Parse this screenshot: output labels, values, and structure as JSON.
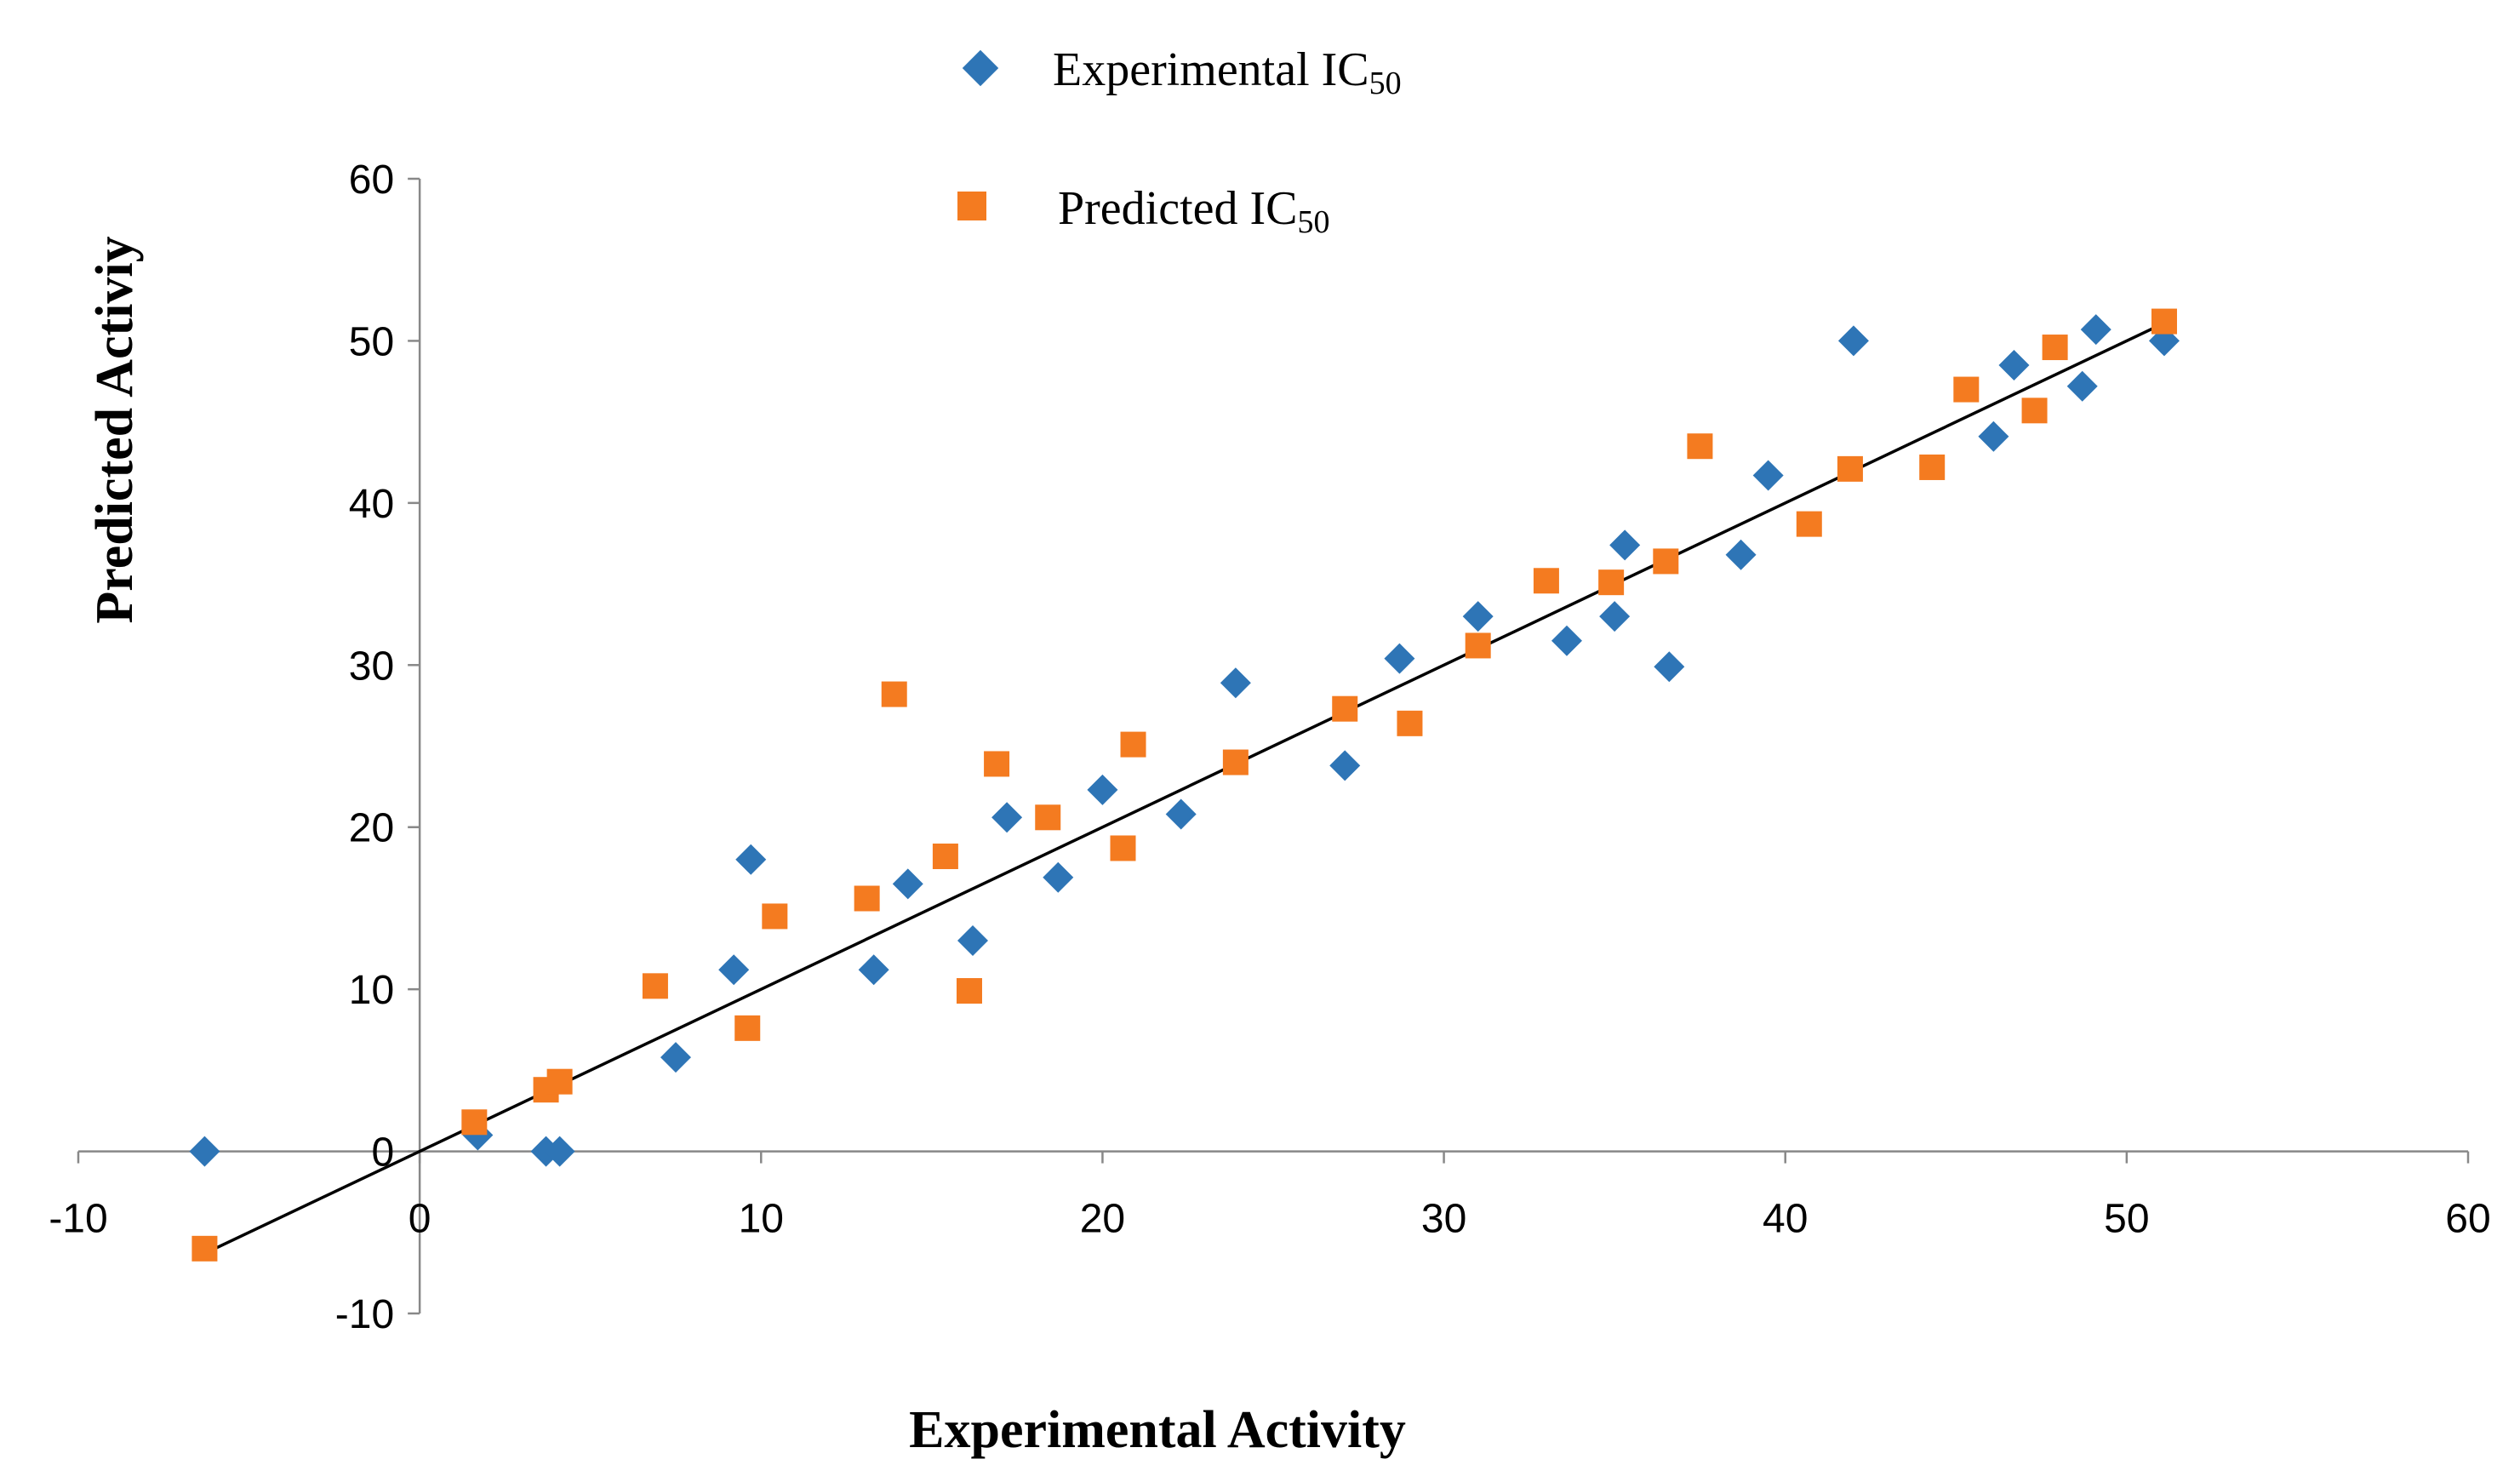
{
  "chart_data": {
    "type": "scatter",
    "title": "",
    "xlabel": "Experimental Activity",
    "ylabel": "Predicted Activiy",
    "xlim": [
      -10,
      60
    ],
    "ylim": [
      -10,
      60
    ],
    "x_ticks": [
      "-10",
      "0",
      "10",
      "20",
      "30",
      "40",
      "50",
      "60"
    ],
    "y_ticks": [
      "-10",
      "0",
      "10",
      "20",
      "30",
      "40",
      "50",
      "60"
    ],
    "x_tick_values": [
      -10,
      0,
      10,
      20,
      30,
      40,
      50,
      60
    ],
    "y_tick_values": [
      -10,
      0,
      10,
      20,
      30,
      40,
      50,
      60
    ],
    "grid": false,
    "legend_position": "top-center",
    "series": [
      {
        "name": "Experimental IC50",
        "label_main": "Experimental IC",
        "label_sub": "50",
        "marker": "diamond",
        "color": "#2E75B6",
        "points": [
          {
            "x": -6.3,
            "y": 0
          },
          {
            "x": 1.7,
            "y": 1.0
          },
          {
            "x": 3.7,
            "y": 0
          },
          {
            "x": 4.1,
            "y": 0
          },
          {
            "x": 7.5,
            "y": 5.8
          },
          {
            "x": 9.2,
            "y": 11.2
          },
          {
            "x": 9.7,
            "y": 18.0
          },
          {
            "x": 13.3,
            "y": 11.2
          },
          {
            "x": 14.3,
            "y": 16.5
          },
          {
            "x": 16.2,
            "y": 13.0
          },
          {
            "x": 17.2,
            "y": 20.6
          },
          {
            "x": 18.7,
            "y": 16.9
          },
          {
            "x": 20.0,
            "y": 22.3
          },
          {
            "x": 22.3,
            "y": 20.8
          },
          {
            "x": 23.9,
            "y": 28.9
          },
          {
            "x": 27.1,
            "y": 23.8
          },
          {
            "x": 28.7,
            "y": 30.4
          },
          {
            "x": 31.0,
            "y": 33.0
          },
          {
            "x": 33.6,
            "y": 31.5
          },
          {
            "x": 35.0,
            "y": 33.0
          },
          {
            "x": 35.3,
            "y": 37.4
          },
          {
            "x": 36.6,
            "y": 29.9
          },
          {
            "x": 38.7,
            "y": 36.8
          },
          {
            "x": 39.5,
            "y": 41.7
          },
          {
            "x": 42.0,
            "y": 50.0
          },
          {
            "x": 46.1,
            "y": 44.1
          },
          {
            "x": 46.7,
            "y": 48.5
          },
          {
            "x": 48.7,
            "y": 47.2
          },
          {
            "x": 49.1,
            "y": 50.7
          },
          {
            "x": 51.1,
            "y": 50.0
          }
        ]
      },
      {
        "name": "Predicted IC50",
        "label_main": "Predicted IC",
        "label_sub": "50",
        "marker": "square",
        "color": "#F47B20",
        "points": [
          {
            "x": -6.3,
            "y": -6.0
          },
          {
            "x": 1.6,
            "y": 1.8
          },
          {
            "x": 3.7,
            "y": 3.8
          },
          {
            "x": 4.1,
            "y": 4.3
          },
          {
            "x": 6.9,
            "y": 10.2
          },
          {
            "x": 9.6,
            "y": 7.6
          },
          {
            "x": 10.4,
            "y": 14.5
          },
          {
            "x": 13.1,
            "y": 15.6
          },
          {
            "x": 13.9,
            "y": 28.2
          },
          {
            "x": 15.4,
            "y": 18.2
          },
          {
            "x": 16.1,
            "y": 9.9
          },
          {
            "x": 16.9,
            "y": 23.9
          },
          {
            "x": 18.4,
            "y": 20.6
          },
          {
            "x": 20.6,
            "y": 18.7
          },
          {
            "x": 20.9,
            "y": 25.1
          },
          {
            "x": 23.9,
            "y": 24.0
          },
          {
            "x": 27.1,
            "y": 27.3
          },
          {
            "x": 29.0,
            "y": 26.4
          },
          {
            "x": 31.0,
            "y": 31.2
          },
          {
            "x": 33.0,
            "y": 35.2
          },
          {
            "x": 34.9,
            "y": 35.1
          },
          {
            "x": 36.5,
            "y": 36.4
          },
          {
            "x": 37.5,
            "y": 43.5
          },
          {
            "x": 40.7,
            "y": 38.7
          },
          {
            "x": 41.9,
            "y": 42.1
          },
          {
            "x": 44.3,
            "y": 42.2
          },
          {
            "x": 45.3,
            "y": 47.0
          },
          {
            "x": 47.3,
            "y": 45.7
          },
          {
            "x": 47.9,
            "y": 49.6
          },
          {
            "x": 51.1,
            "y": 51.2
          }
        ]
      }
    ],
    "trendline": {
      "x_start": -6.3,
      "y_start": -6.3,
      "x_end": 51.1,
      "y_end": 51.1,
      "color": "#000000"
    }
  }
}
